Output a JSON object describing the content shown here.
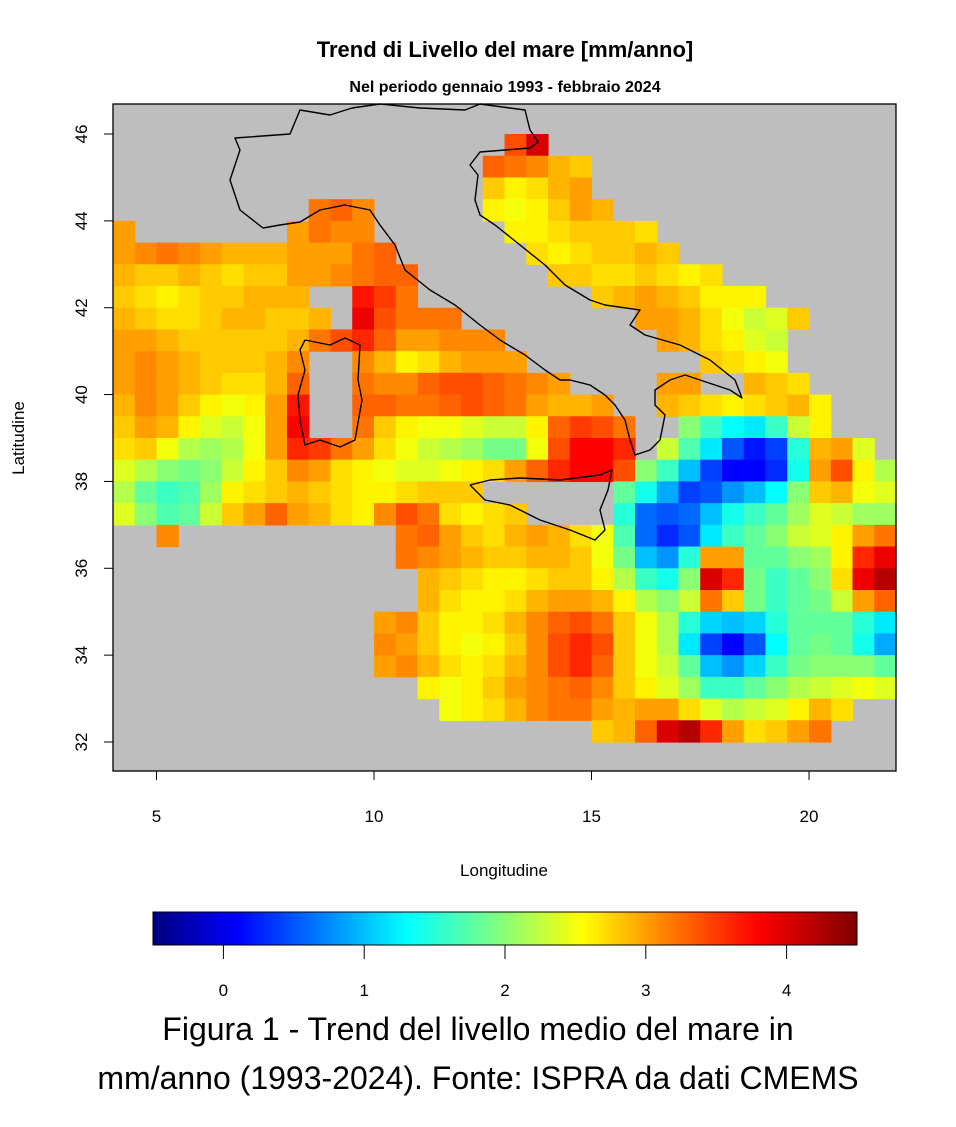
{
  "chart_data": {
    "type": "heatmap",
    "title": "Trend di Livello del mare [mm/anno]",
    "subtitle": "Nel periodo gennaio 1993 - febbraio 2024",
    "xlabel": "Longitudine",
    "ylabel": "Latitudine",
    "xlim": [
      4,
      22
    ],
    "ylim": [
      31.3,
      46.7
    ],
    "x_ticks": [
      "5",
      "10",
      "15",
      "20"
    ],
    "y_ticks": [
      "32",
      "34",
      "36",
      "38",
      "40",
      "42",
      "44",
      "46"
    ],
    "land_color": "#BEBEBE",
    "coastline_color": "#000000",
    "colorbar": {
      "range": [
        -0.5,
        4.5
      ],
      "ticks": [
        "0",
        "1",
        "2",
        "3",
        "4"
      ],
      "colormap": "jet",
      "stops": [
        {
          "value": -0.5,
          "color": "#00007F"
        },
        {
          "value": 0.1,
          "color": "#0000FF"
        },
        {
          "value": 0.7,
          "color": "#007FFF"
        },
        {
          "value": 1.3,
          "color": "#00FFFF"
        },
        {
          "value": 1.95,
          "color": "#7FFF7F"
        },
        {
          "value": 2.55,
          "color": "#FFFF00"
        },
        {
          "value": 3.15,
          "color": "#FF7F00"
        },
        {
          "value": 3.8,
          "color": "#FF0000"
        },
        {
          "value": 4.5,
          "color": "#7F0000"
        }
      ]
    },
    "grid": {
      "lon": [
        4.25,
        4.75,
        5.25,
        5.75,
        6.25,
        6.75,
        7.25,
        7.75,
        8.25,
        8.75,
        9.25,
        9.75,
        10.25,
        10.75,
        11.25,
        11.75,
        12.25,
        12.75,
        13.25,
        13.75,
        14.25,
        14.75,
        15.25,
        15.75,
        16.25,
        16.75,
        17.25,
        17.75,
        18.25,
        18.75,
        19.25,
        19.75,
        20.25,
        20.75,
        21.25,
        21.75
      ],
      "lat": [
        46.25,
        45.75,
        45.25,
        44.75,
        44.25,
        43.75,
        43.25,
        42.75,
        42.25,
        41.75,
        41.25,
        40.75,
        40.25,
        39.75,
        39.25,
        38.75,
        38.25,
        37.75,
        37.25,
        36.75,
        36.25,
        35.75,
        35.25,
        34.75,
        34.25,
        33.75,
        33.25,
        32.75,
        32.25,
        31.75
      ],
      "values": [
        [
          null,
          null,
          null,
          null,
          null,
          null,
          null,
          null,
          null,
          null,
          null,
          null,
          null,
          null,
          null,
          null,
          null,
          null,
          null,
          null,
          null,
          null,
          null,
          null,
          null,
          null,
          null,
          null,
          null,
          null,
          null,
          null,
          null,
          null,
          null,
          null
        ],
        [
          null,
          null,
          null,
          null,
          null,
          null,
          null,
          null,
          null,
          null,
          null,
          null,
          null,
          null,
          null,
          null,
          null,
          null,
          3.4,
          4.0,
          null,
          null,
          null,
          null,
          null,
          null,
          null,
          null,
          null,
          null,
          null,
          null,
          null,
          null,
          null,
          null
        ],
        [
          null,
          null,
          null,
          null,
          null,
          null,
          null,
          null,
          null,
          null,
          null,
          null,
          null,
          null,
          null,
          null,
          null,
          3.3,
          3.2,
          3.1,
          2.9,
          2.8,
          null,
          null,
          null,
          null,
          null,
          null,
          null,
          null,
          null,
          null,
          null,
          null,
          null,
          null
        ],
        [
          null,
          null,
          null,
          null,
          null,
          null,
          null,
          null,
          null,
          null,
          null,
          null,
          null,
          null,
          null,
          null,
          null,
          2.8,
          2.6,
          2.7,
          2.9,
          3.0,
          null,
          null,
          null,
          null,
          null,
          null,
          null,
          null,
          null,
          null,
          null,
          null,
          null,
          null
        ],
        [
          null,
          null,
          null,
          null,
          null,
          null,
          null,
          null,
          null,
          3.2,
          3.3,
          3.1,
          null,
          null,
          null,
          null,
          null,
          2.6,
          2.5,
          2.6,
          2.8,
          3.0,
          2.9,
          null,
          null,
          null,
          null,
          null,
          null,
          null,
          null,
          null,
          null,
          null,
          null,
          null
        ],
        [
          3.0,
          null,
          null,
          null,
          null,
          null,
          null,
          null,
          3.0,
          3.2,
          3.1,
          3.1,
          null,
          null,
          null,
          null,
          null,
          null,
          2.6,
          2.6,
          2.7,
          2.8,
          2.8,
          2.8,
          2.7,
          null,
          null,
          null,
          null,
          null,
          null,
          null,
          null,
          null,
          null,
          null
        ],
        [
          3.0,
          3.1,
          3.2,
          3.1,
          3.0,
          2.9,
          2.9,
          2.9,
          3.0,
          3.0,
          3.0,
          3.2,
          3.3,
          null,
          null,
          null,
          null,
          null,
          null,
          2.7,
          2.6,
          2.7,
          2.8,
          2.8,
          2.9,
          2.8,
          null,
          null,
          null,
          null,
          null,
          null,
          null,
          null,
          null,
          null
        ],
        [
          2.9,
          2.8,
          2.8,
          2.9,
          2.8,
          2.7,
          2.8,
          2.8,
          3.0,
          3.0,
          3.1,
          3.2,
          3.3,
          3.3,
          null,
          null,
          null,
          null,
          null,
          null,
          2.8,
          2.8,
          2.7,
          2.7,
          2.8,
          2.7,
          2.6,
          2.7,
          null,
          null,
          null,
          null,
          null,
          null,
          null,
          null
        ],
        [
          2.8,
          2.7,
          2.6,
          2.7,
          2.8,
          2.8,
          2.9,
          2.9,
          2.9,
          null,
          null,
          3.7,
          3.5,
          3.2,
          null,
          null,
          null,
          null,
          null,
          null,
          null,
          null,
          2.8,
          2.9,
          3.0,
          2.9,
          2.8,
          2.6,
          2.6,
          2.6,
          null,
          null,
          null,
          null,
          null,
          null
        ],
        [
          2.9,
          2.8,
          2.7,
          2.7,
          2.8,
          2.9,
          2.9,
          2.8,
          2.8,
          2.9,
          null,
          3.9,
          3.4,
          3.2,
          3.2,
          3.2,
          null,
          null,
          null,
          null,
          null,
          null,
          null,
          null,
          3.0,
          3.0,
          2.9,
          2.7,
          2.5,
          2.3,
          2.4,
          2.8,
          null,
          null,
          null,
          null
        ],
        [
          3.0,
          3.0,
          2.9,
          2.8,
          2.8,
          2.8,
          2.8,
          2.8,
          2.9,
          3.2,
          3.4,
          3.6,
          3.3,
          3.0,
          3.0,
          3.1,
          3.1,
          3.1,
          null,
          null,
          null,
          null,
          null,
          null,
          null,
          3.0,
          2.9,
          2.7,
          2.6,
          2.4,
          2.3,
          null,
          null,
          null,
          null,
          null
        ],
        [
          3.0,
          3.1,
          3.0,
          2.9,
          2.8,
          2.8,
          2.8,
          2.9,
          3.1,
          null,
          null,
          3.1,
          2.9,
          2.6,
          2.7,
          2.9,
          3.0,
          3.0,
          3.0,
          null,
          null,
          null,
          null,
          null,
          null,
          null,
          null,
          2.8,
          2.7,
          2.6,
          2.5,
          null,
          null,
          null,
          null,
          null
        ],
        [
          3.0,
          3.1,
          3.0,
          2.9,
          2.8,
          2.7,
          2.7,
          2.9,
          3.3,
          null,
          null,
          3.2,
          3.1,
          3.1,
          3.3,
          3.4,
          3.4,
          3.3,
          3.2,
          3.1,
          3.0,
          null,
          null,
          null,
          null,
          3.0,
          3.0,
          null,
          null,
          2.9,
          2.8,
          2.7,
          null,
          null,
          null,
          null
        ],
        [
          2.9,
          3.1,
          3.0,
          2.8,
          2.6,
          2.5,
          2.6,
          3.0,
          3.7,
          null,
          null,
          3.3,
          3.3,
          3.2,
          3.2,
          3.3,
          3.4,
          3.3,
          3.2,
          3.0,
          2.9,
          2.9,
          3.0,
          null,
          null,
          2.9,
          2.8,
          2.7,
          2.6,
          2.7,
          2.8,
          2.9,
          2.6,
          null,
          null,
          null
        ],
        [
          2.8,
          3.0,
          2.9,
          2.6,
          2.4,
          2.3,
          2.5,
          3.0,
          3.8,
          null,
          null,
          3.2,
          2.8,
          2.6,
          2.5,
          2.5,
          2.4,
          2.3,
          2.3,
          2.6,
          3.3,
          3.5,
          3.4,
          3.2,
          null,
          null,
          2.0,
          1.6,
          1.3,
          1.2,
          1.6,
          2.3,
          2.6,
          null,
          null,
          null
        ],
        [
          2.7,
          2.8,
          2.5,
          2.2,
          2.1,
          2.2,
          2.5,
          3.0,
          3.6,
          3.5,
          3.2,
          3.0,
          2.7,
          2.5,
          2.3,
          2.2,
          2.1,
          1.9,
          1.9,
          2.5,
          3.4,
          3.8,
          3.8,
          3.6,
          null,
          2.3,
          1.7,
          1.2,
          0.5,
          0.2,
          0.4,
          1.5,
          2.9,
          3.0,
          2.4,
          null
        ],
        [
          2.4,
          2.2,
          2.0,
          1.9,
          2.0,
          2.3,
          2.6,
          2.8,
          3.1,
          3.0,
          2.7,
          2.6,
          2.5,
          2.4,
          2.4,
          2.5,
          2.6,
          2.7,
          3.0,
          3.3,
          3.6,
          3.8,
          3.8,
          3.4,
          2.0,
          1.6,
          1.0,
          0.4,
          0.1,
          0.1,
          0.3,
          1.4,
          3.0,
          3.4,
          2.6,
          2.2
        ],
        [
          2.2,
          1.8,
          1.6,
          1.7,
          2.1,
          2.6,
          2.7,
          2.8,
          2.9,
          2.8,
          2.7,
          2.6,
          2.6,
          2.7,
          2.8,
          2.8,
          2.8,
          null,
          null,
          null,
          null,
          null,
          null,
          1.8,
          1.4,
          0.9,
          0.4,
          0.5,
          0.8,
          1.0,
          1.3,
          2.0,
          2.8,
          2.9,
          2.5,
          2.4
        ],
        [
          2.4,
          2.0,
          1.7,
          1.8,
          2.3,
          2.8,
          3.0,
          3.3,
          3.0,
          2.9,
          2.7,
          2.6,
          3.1,
          3.4,
          3.2,
          2.7,
          2.6,
          2.7,
          2.8,
          null,
          null,
          null,
          null,
          1.5,
          0.6,
          0.5,
          0.6,
          1.0,
          1.4,
          1.6,
          1.8,
          2.1,
          2.4,
          2.3,
          2.1,
          2.1
        ],
        [
          null,
          null,
          3.1,
          null,
          null,
          null,
          null,
          null,
          null,
          null,
          null,
          null,
          null,
          3.2,
          3.3,
          3.0,
          2.8,
          2.7,
          2.9,
          3.0,
          2.9,
          2.7,
          2.5,
          1.7,
          0.6,
          0.3,
          0.5,
          1.2,
          1.6,
          1.8,
          2.0,
          2.3,
          2.4,
          2.6,
          3.0,
          3.2
        ],
        [
          null,
          null,
          null,
          null,
          null,
          null,
          null,
          null,
          null,
          null,
          null,
          null,
          null,
          3.2,
          3.1,
          3.0,
          2.9,
          2.8,
          2.8,
          2.9,
          2.9,
          2.8,
          2.5,
          1.9,
          1.0,
          0.8,
          1.5,
          3.0,
          3.0,
          1.8,
          1.8,
          2.0,
          2.1,
          2.6,
          3.6,
          3.9
        ],
        [
          null,
          null,
          null,
          null,
          null,
          null,
          null,
          null,
          null,
          null,
          null,
          null,
          null,
          null,
          2.9,
          2.8,
          2.7,
          2.6,
          2.6,
          2.7,
          2.8,
          2.8,
          2.6,
          2.2,
          1.6,
          1.4,
          2.0,
          4.0,
          3.6,
          1.9,
          1.6,
          1.8,
          2.0,
          2.7,
          3.9,
          4.2
        ],
        [
          null,
          null,
          null,
          null,
          null,
          null,
          null,
          null,
          null,
          null,
          null,
          null,
          null,
          null,
          2.9,
          2.7,
          2.6,
          2.6,
          2.7,
          2.9,
          3.0,
          3.0,
          2.9,
          2.6,
          2.2,
          2.0,
          2.3,
          3.2,
          2.8,
          1.9,
          1.6,
          1.8,
          1.9,
          2.3,
          3.0,
          3.3
        ],
        [
          null,
          null,
          null,
          null,
          null,
          null,
          null,
          null,
          null,
          null,
          null,
          null,
          3.0,
          3.1,
          2.8,
          2.6,
          2.6,
          2.7,
          2.9,
          3.1,
          3.3,
          3.4,
          3.2,
          2.8,
          2.5,
          2.2,
          1.5,
          1.1,
          1.0,
          1.1,
          1.5,
          1.8,
          1.8,
          1.8,
          1.5,
          1.2
        ],
        [
          null,
          null,
          null,
          null,
          null,
          null,
          null,
          null,
          null,
          null,
          null,
          null,
          3.1,
          3.0,
          2.8,
          2.6,
          2.5,
          2.6,
          2.8,
          3.1,
          3.4,
          3.6,
          3.4,
          2.8,
          2.5,
          2.2,
          1.2,
          0.4,
          0.1,
          0.5,
          1.3,
          1.8,
          1.9,
          1.8,
          1.4,
          0.9
        ],
        [
          null,
          null,
          null,
          null,
          null,
          null,
          null,
          null,
          null,
          null,
          null,
          null,
          3.0,
          3.1,
          2.9,
          2.7,
          2.6,
          2.7,
          2.9,
          3.1,
          3.4,
          3.6,
          3.3,
          2.8,
          2.5,
          2.3,
          1.8,
          1.0,
          0.8,
          1.1,
          1.6,
          1.9,
          2.0,
          2.0,
          2.0,
          1.8
        ],
        [
          null,
          null,
          null,
          null,
          null,
          null,
          null,
          null,
          null,
          null,
          null,
          null,
          null,
          null,
          2.6,
          2.5,
          2.6,
          2.8,
          3.0,
          3.1,
          3.2,
          3.3,
          3.1,
          2.8,
          2.6,
          2.4,
          2.1,
          1.6,
          1.6,
          1.8,
          2.0,
          2.2,
          2.3,
          2.4,
          2.5,
          2.4
        ],
        [
          null,
          null,
          null,
          null,
          null,
          null,
          null,
          null,
          null,
          null,
          null,
          null,
          null,
          null,
          null,
          2.5,
          2.6,
          2.7,
          2.9,
          3.1,
          3.2,
          3.2,
          3.0,
          2.9,
          3.0,
          3.0,
          2.7,
          2.4,
          2.2,
          2.3,
          2.4,
          2.6,
          2.9,
          2.7,
          null,
          null
        ],
        [
          null,
          null,
          null,
          null,
          null,
          null,
          null,
          null,
          null,
          null,
          null,
          null,
          null,
          null,
          null,
          null,
          null,
          null,
          null,
          null,
          null,
          null,
          2.8,
          2.9,
          3.3,
          4.0,
          4.2,
          3.6,
          3.0,
          2.7,
          2.8,
          3.0,
          3.2,
          null,
          null,
          null
        ],
        [
          null,
          null,
          null,
          null,
          null,
          null,
          null,
          null,
          null,
          null,
          null,
          null,
          null,
          null,
          null,
          null,
          null,
          null,
          null,
          null,
          null,
          null,
          null,
          null,
          null,
          null,
          null,
          null,
          null,
          null,
          null,
          null,
          null,
          null,
          null,
          null
        ]
      ]
    }
  },
  "caption": {
    "line1": "Figura 1 - Trend del livello medio del mare in",
    "line2": "mm/anno (1993-2024). Fonte: ISPRA da dati CMEMS"
  }
}
